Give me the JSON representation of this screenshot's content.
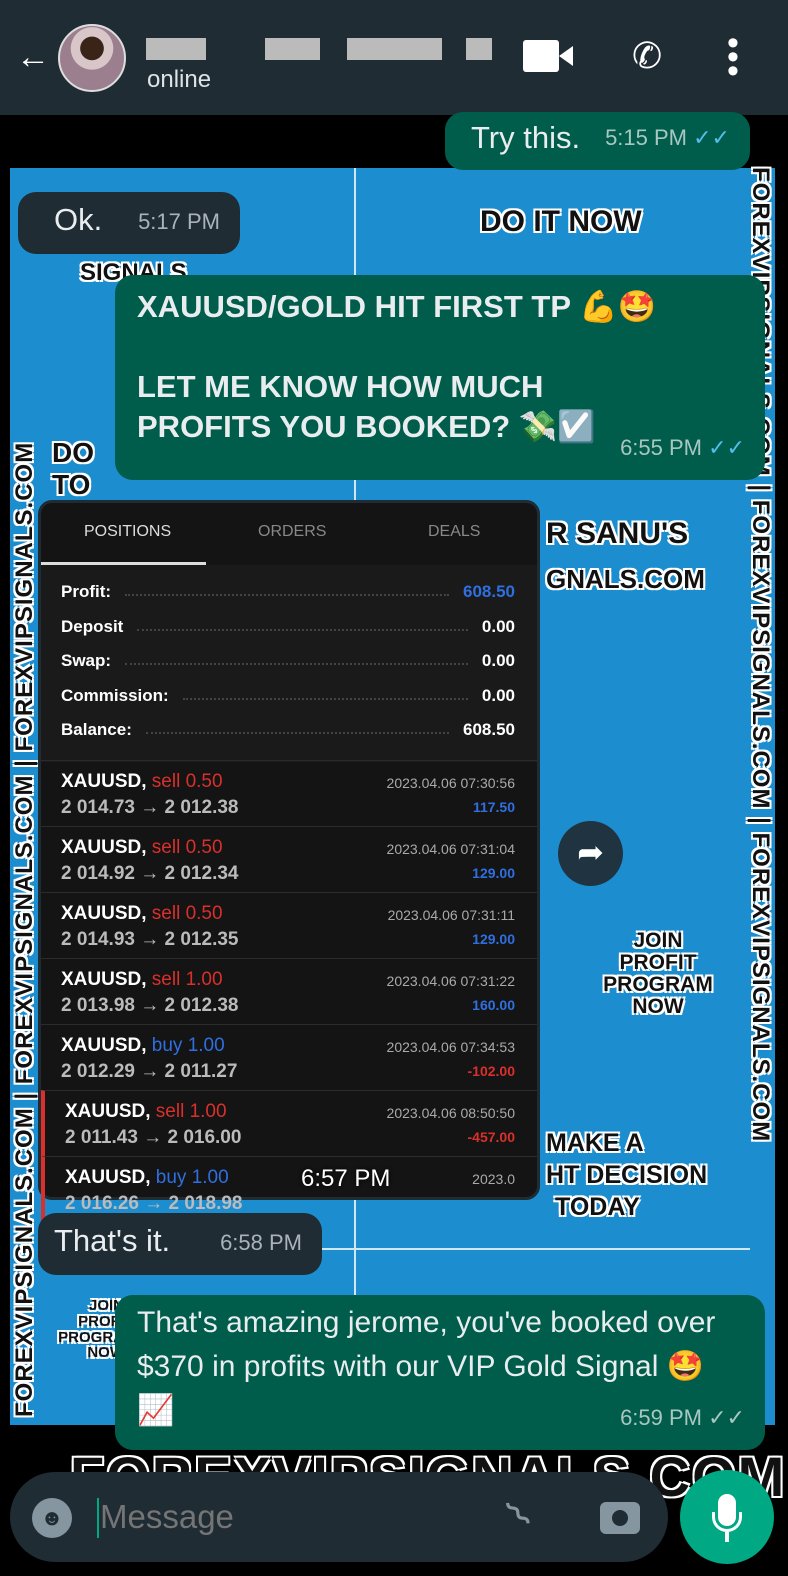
{
  "header": {
    "status": "online",
    "icons": [
      "back-arrow-icon",
      "video-call-icon",
      "phone-icon",
      "more-vert-icon"
    ]
  },
  "poster": {
    "texts": {
      "do_it_now": "DO IT NOW",
      "signals": "SIGNALS",
      "do": "DO",
      "to": "TO",
      "sanu": "R SANU'S",
      "gnals": "GNALS.COM",
      "join": "JOIN\nPROFIT\nPROGRAM\nNOW",
      "make": "MAKE A",
      "decision": "HT DECISION",
      "today": "TODAY",
      "join_small": "JOIN\nPROFI\nPROGRA\nNOW",
      "bottom": "FOREXVIPSIGNALS.COM",
      "watermark": "FOREXVIPSIGNALS.COM | FOREXVIPSIGNALS.COM | FOREXVIPSIGNALS.COM"
    },
    "color": "#1c8ed0"
  },
  "messages": [
    {
      "dir": "out",
      "text": "Try this.",
      "time": "5:15 PM",
      "ticks": "✓✓"
    },
    {
      "dir": "in",
      "text": "Ok.",
      "time": "5:17 PM"
    },
    {
      "dir": "out",
      "line1": "XAUUSD/GOLD HIT FIRST TP 💪🤩",
      "line2": "LET ME KNOW HOW MUCH PROFITS YOU BOOKED? 💸☑️",
      "time": "6:55 PM",
      "ticks": "✓✓"
    },
    {
      "dir": "in",
      "type": "image",
      "time": "6:57 PM"
    },
    {
      "dir": "in",
      "text": "That's it.",
      "time": "6:58 PM"
    },
    {
      "dir": "out",
      "text": "That's amazing jerome, you've booked over $370 in profits with our VIP Gold Signal 🤩📈",
      "time": "6:59 PM",
      "ticks": "✓✓"
    }
  ],
  "trade": {
    "tabs": [
      "POSITIONS",
      "ORDERS",
      "DEALS"
    ],
    "summary": [
      {
        "label": "Profit:",
        "value": "608.50"
      },
      {
        "label": "Deposit",
        "value": "0.00"
      },
      {
        "label": "Swap:",
        "value": "0.00"
      },
      {
        "label": "Commission:",
        "value": "0.00"
      },
      {
        "label": "Balance:",
        "value": "608.50"
      }
    ],
    "rows": [
      {
        "sym": "XAUUSD,",
        "side": "sell 0.50",
        "prices": "2 014.73 → 2 012.38",
        "date": "2023.04.06 07:30:56",
        "profit": "117.50"
      },
      {
        "sym": "XAUUSD,",
        "side": "sell 0.50",
        "prices": "2 014.92 → 2 012.34",
        "date": "2023.04.06 07:31:04",
        "profit": "129.00"
      },
      {
        "sym": "XAUUSD,",
        "side": "sell 0.50",
        "prices": "2 014.93 → 2 012.35",
        "date": "2023.04.06 07:31:11",
        "profit": "129.00"
      },
      {
        "sym": "XAUUSD,",
        "side": "sell 1.00",
        "prices": "2 013.98 → 2 012.38",
        "date": "2023.04.06 07:31:22",
        "profit": "160.00"
      },
      {
        "sym": "XAUUSD,",
        "side": "buy 1.00",
        "prices": "2 012.29 → 2 011.27",
        "date": "2023.04.06 07:34:53",
        "profit": "-102.00"
      },
      {
        "sym": "XAUUSD,",
        "side": "sell 1.00",
        "prices": "2 011.43 → 2 016.00",
        "date": "2023.04.06 08:50:50",
        "profit": "-457.00"
      },
      {
        "sym": "XAUUSD,",
        "side": "buy 1.00",
        "prices": "2 016.26 → 2 018.98",
        "date": "2023.0",
        "profit": ""
      }
    ],
    "colors": {
      "sell": "#d9302b",
      "buy": "#2f6fe0",
      "profit_pos": "#2f6fe0",
      "profit_neg": "#d9302b"
    }
  },
  "input": {
    "placeholder": "Message"
  }
}
